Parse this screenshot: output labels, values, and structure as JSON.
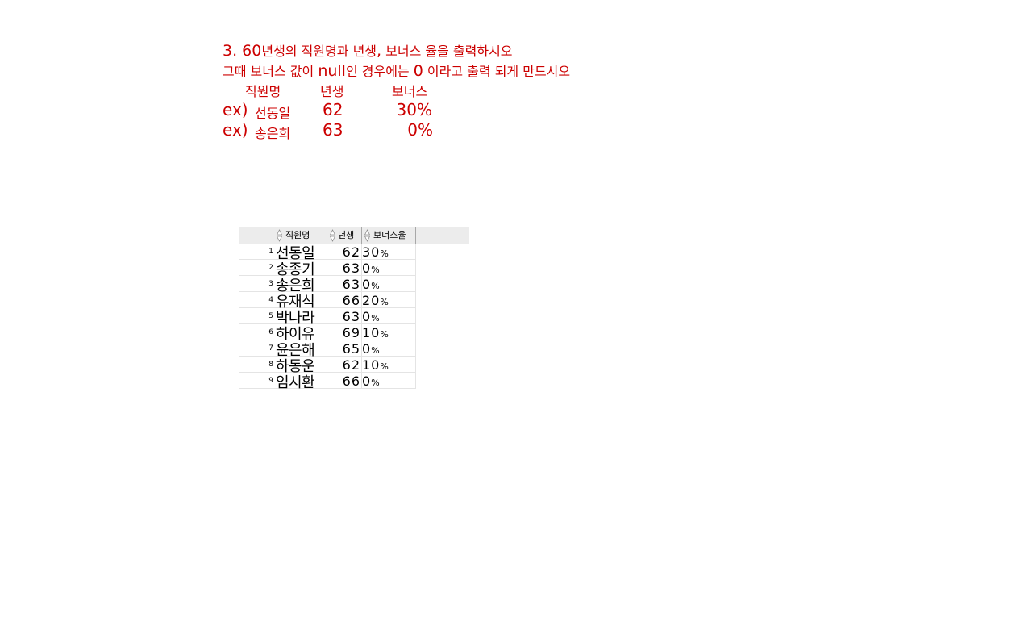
{
  "instructions": {
    "line1_num": "3. 60",
    "line1_rest": "년생의 직원명과 년생",
    "line1_comma": ",",
    "line1_end": " 보너스 율을 출력하시오",
    "line2_a": "그때 보너스 값이 ",
    "line2_null": "null",
    "line2_b": "인 경우에는 ",
    "line2_zero": "0",
    "line2_c": " 이라고 출력 되게 만드시오",
    "header_name": "직원명",
    "header_year": "년생",
    "header_bonus": "보너스",
    "examples": [
      {
        "prefix": "ex)",
        "name": "선동일",
        "year": "62",
        "bonus": "30%"
      },
      {
        "prefix": "ex)",
        "name": "송은희",
        "year": "63",
        "bonus": "0%"
      }
    ]
  },
  "grid": {
    "columns": [
      "직원명",
      "년생",
      "보너스율"
    ],
    "rows": [
      {
        "num": "1",
        "name": "선동일",
        "year": "62",
        "bonus": "30",
        "pct": "%"
      },
      {
        "num": "2",
        "name": "송종기",
        "year": "63",
        "bonus": "0",
        "pct": "%"
      },
      {
        "num": "3",
        "name": "송은희",
        "year": "63",
        "bonus": "0",
        "pct": "%"
      },
      {
        "num": "4",
        "name": "유재식",
        "year": "66",
        "bonus": "20",
        "pct": "%"
      },
      {
        "num": "5",
        "name": "박나라",
        "year": "63",
        "bonus": "0",
        "pct": "%"
      },
      {
        "num": "6",
        "name": "하이유",
        "year": "69",
        "bonus": "10",
        "pct": "%"
      },
      {
        "num": "7",
        "name": "윤은해",
        "year": "65",
        "bonus": "0",
        "pct": "%"
      },
      {
        "num": "8",
        "name": "하동운",
        "year": "62",
        "bonus": "10",
        "pct": "%"
      },
      {
        "num": "9",
        "name": "임시환",
        "year": "66",
        "bonus": "0",
        "pct": "%"
      }
    ]
  },
  "colors": {
    "instruction_text": "#cc0000",
    "grid_header_bg": "#ececec"
  }
}
